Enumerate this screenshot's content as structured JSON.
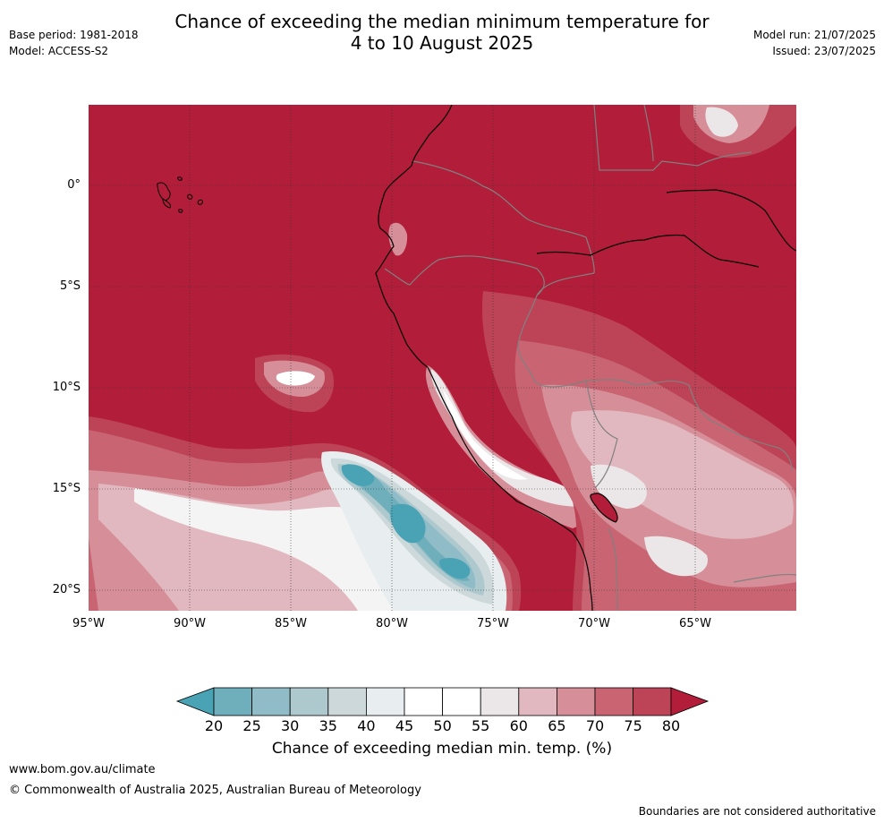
{
  "title": {
    "line1": "Chance of exceeding the median minimum temperature for",
    "line2": "4 to 10 August 2025"
  },
  "meta_left": {
    "base_period": "Base period: 1981-2018",
    "model": "Model: ACCESS-S2"
  },
  "meta_right": {
    "model_run": "Model run: 21/07/2025",
    "issued": "Issued: 23/07/2025"
  },
  "map": {
    "region": "Western South America and eastern Pacific",
    "lat_ticks": [
      "0°",
      "5°S",
      "10°S",
      "15°S",
      "20°S"
    ],
    "lon_ticks": [
      "95°W",
      "90°W",
      "85°W",
      "80°W",
      "75°W",
      "70°W",
      "65°W"
    ],
    "background_class": "80"
  },
  "colorbar": {
    "ticks": [
      "20",
      "25",
      "30",
      "35",
      "40",
      "45",
      "50",
      "55",
      "60",
      "65",
      "70",
      "75",
      "80"
    ],
    "colors": [
      "#4aa3b4",
      "#6faebb",
      "#8fbcc6",
      "#adc9ce",
      "#ccd8da",
      "#e8eef0",
      "#ffffff",
      "#ffffff",
      "#ebe7e8",
      "#e1b8bf",
      "#d68f99",
      "#c96472",
      "#bd4457",
      "#b21d39"
    ],
    "label": "Chance of exceeding median min. temp. (%)"
  },
  "footer": {
    "url": "www.bom.gov.au/climate",
    "copyright": "© Commonwealth of Australia 2025, Australian Bureau of Meteorology",
    "disclaimer": "Boundaries are not considered authoritative"
  }
}
